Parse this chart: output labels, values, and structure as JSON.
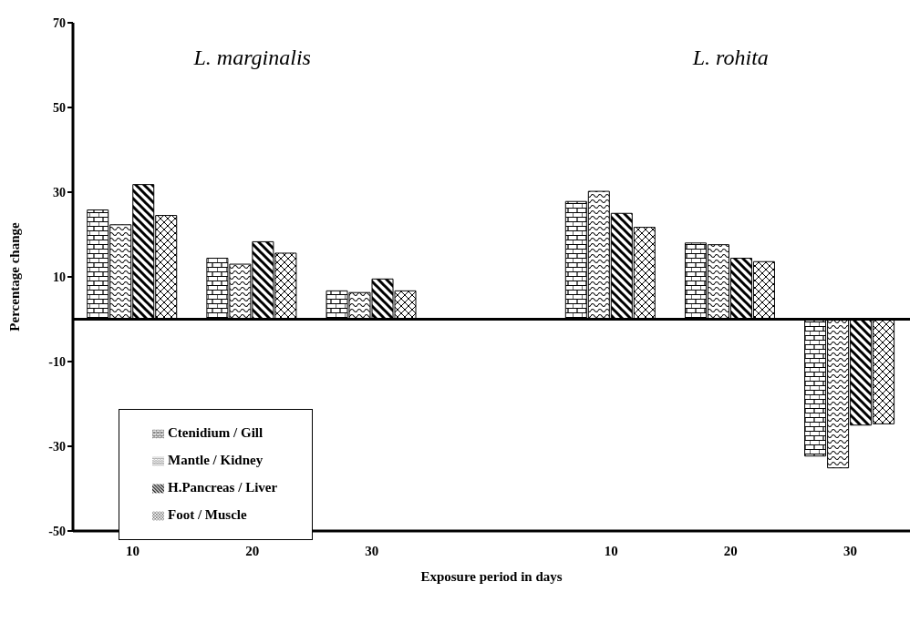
{
  "chart_data": {
    "type": "bar",
    "xlabel": "Exposure period in days",
    "ylabel": "Percentage change",
    "categories": [
      "10",
      "20",
      "30",
      null,
      "10",
      "20",
      "30"
    ],
    "series": [
      {
        "name": "Ctenidium / Gill",
        "color": "#000000",
        "values": [
          25.8,
          14.4,
          6.7,
          null,
          27.8,
          18,
          -32.3
        ]
      },
      {
        "name": "Mantle / Kidney",
        "color": "#000000",
        "values": [
          22.3,
          13,
          6.3,
          null,
          30.2,
          17.6,
          -35.1
        ]
      },
      {
        "name": "H.Pancreas / Liver",
        "color": "#000000",
        "values": [
          31.8,
          18.3,
          9.5,
          null,
          25,
          14.4,
          -25
        ]
      },
      {
        "name": "Foot / Muscle",
        "color": "#000000",
        "values": [
          24.5,
          15.6,
          6.7,
          null,
          21.7,
          13.6,
          -24.7
        ]
      }
    ],
    "annotations": [
      "L. marginalis",
      "L. rohita"
    ],
    "ylim": [
      -50,
      70
    ],
    "yticks": [
      -50,
      -30,
      -10,
      10,
      30,
      50,
      70
    ],
    "ref_lines": [
      {
        "axis": "y",
        "value": 0
      }
    ],
    "grid": false,
    "legend": "bottom left"
  }
}
